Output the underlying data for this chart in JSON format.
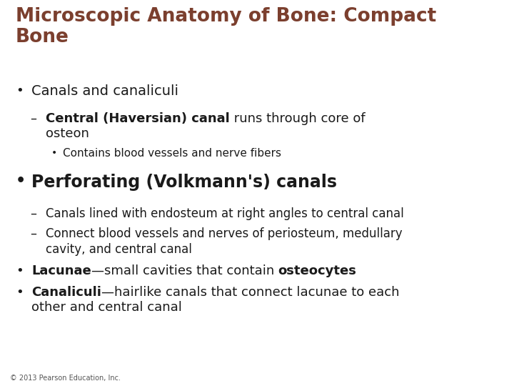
{
  "title_color": "#7B3F2E",
  "bg_color": "#FFFFFF",
  "black": "#1a1a1a",
  "footer": "© 2013 Pearson Education, Inc.",
  "figwidth": 7.2,
  "figheight": 5.4,
  "dpi": 100
}
